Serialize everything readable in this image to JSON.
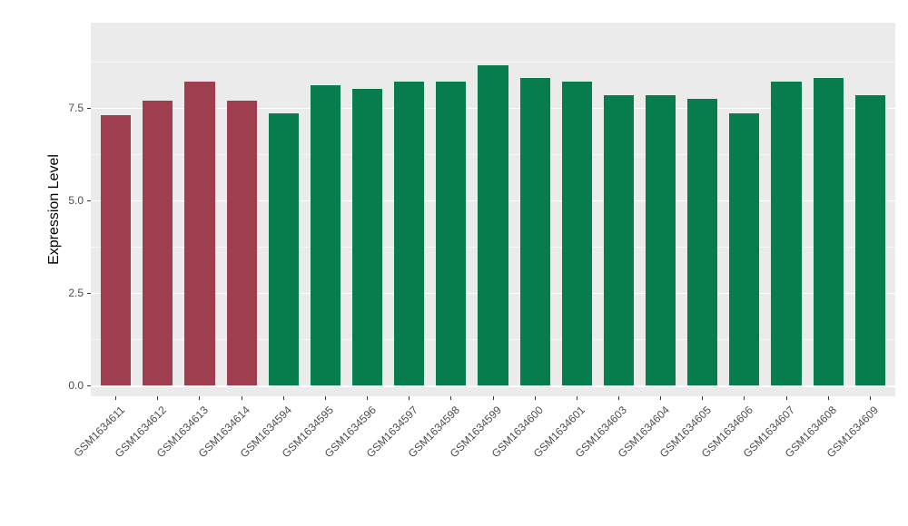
{
  "chart_data": {
    "type": "bar",
    "title": "",
    "xlabel": "",
    "ylabel": "Expression Level",
    "ylim": [
      0,
      9.8
    ],
    "grid": true,
    "legend": "none",
    "panel_bg": "#EBEBEB",
    "grid_color": "#FFFFFF",
    "bar_width_ratio": 0.72,
    "yticks": [
      {
        "label": "0.0",
        "value": 0
      },
      {
        "label": "2.5",
        "value": 2.5
      },
      {
        "label": "5.0",
        "value": 5.0
      },
      {
        "label": "7.5",
        "value": 7.5
      }
    ],
    "minor_ticks": [
      1.25,
      3.75,
      6.25,
      8.75
    ],
    "colors": {
      "highlight": "#9E3E4E",
      "normal": "#077D4D"
    },
    "bars": [
      {
        "label": "GSM1634611",
        "value": 7.3,
        "group": "highlight"
      },
      {
        "label": "GSM1634612",
        "value": 7.7,
        "group": "highlight"
      },
      {
        "label": "GSM1634613",
        "value": 8.2,
        "group": "highlight"
      },
      {
        "label": "GSM1634614",
        "value": 7.7,
        "group": "highlight"
      },
      {
        "label": "GSM1634594",
        "value": 7.35,
        "group": "normal"
      },
      {
        "label": "GSM1634595",
        "value": 8.1,
        "group": "normal"
      },
      {
        "label": "GSM1634596",
        "value": 8.0,
        "group": "normal"
      },
      {
        "label": "GSM1634597",
        "value": 8.2,
        "group": "normal"
      },
      {
        "label": "GSM1634598",
        "value": 8.2,
        "group": "normal"
      },
      {
        "label": "GSM1634599",
        "value": 8.65,
        "group": "normal"
      },
      {
        "label": "GSM1634600",
        "value": 8.3,
        "group": "normal"
      },
      {
        "label": "GSM1634601",
        "value": 8.2,
        "group": "normal"
      },
      {
        "label": "GSM1634603",
        "value": 7.85,
        "group": "normal"
      },
      {
        "label": "GSM1634604",
        "value": 7.85,
        "group": "normal"
      },
      {
        "label": "GSM1634605",
        "value": 7.75,
        "group": "normal"
      },
      {
        "label": "GSM1634606",
        "value": 7.35,
        "group": "normal"
      },
      {
        "label": "GSM1634607",
        "value": 8.2,
        "group": "normal"
      },
      {
        "label": "GSM1634608",
        "value": 8.3,
        "group": "normal"
      },
      {
        "label": "GSM1634609",
        "value": 7.85,
        "group": "normal"
      }
    ]
  }
}
